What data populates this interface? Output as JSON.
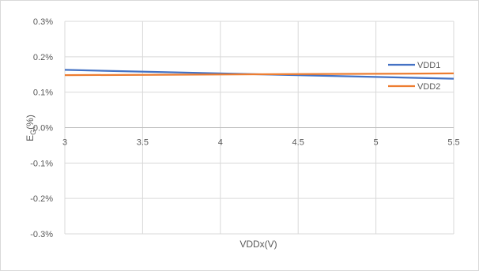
{
  "chart_data": {
    "type": "line",
    "title": "",
    "xlabel": "VDDx(V)",
    "ylabel_main": "E",
    "ylabel_sub": "G",
    "ylabel_tail": "(%)",
    "xlim": [
      3,
      5.5
    ],
    "ylim": [
      -0.3,
      0.3
    ],
    "x_ticks": [
      3,
      3.5,
      4,
      4.5,
      5,
      5.5
    ],
    "x_tick_labels": [
      "3",
      "3.5",
      "4",
      "4.5",
      "5",
      "5.5"
    ],
    "y_ticks": [
      0.3,
      0.2,
      0.1,
      0.0,
      -0.1,
      -0.2,
      -0.3
    ],
    "y_tick_labels": [
      "0.3%",
      "0.2%",
      "0.1%",
      "0.0%",
      "-0.1%",
      "-0.2%",
      "-0.3%"
    ],
    "grid": true,
    "legend_position": "right",
    "series": [
      {
        "name": "VDD1",
        "color": "#4472c4",
        "x": [
          3,
          5.5
        ],
        "y": [
          0.163,
          0.138
        ]
      },
      {
        "name": "VDD2",
        "color": "#ed7d31",
        "x": [
          3,
          5.5
        ],
        "y": [
          0.148,
          0.153
        ]
      }
    ]
  }
}
